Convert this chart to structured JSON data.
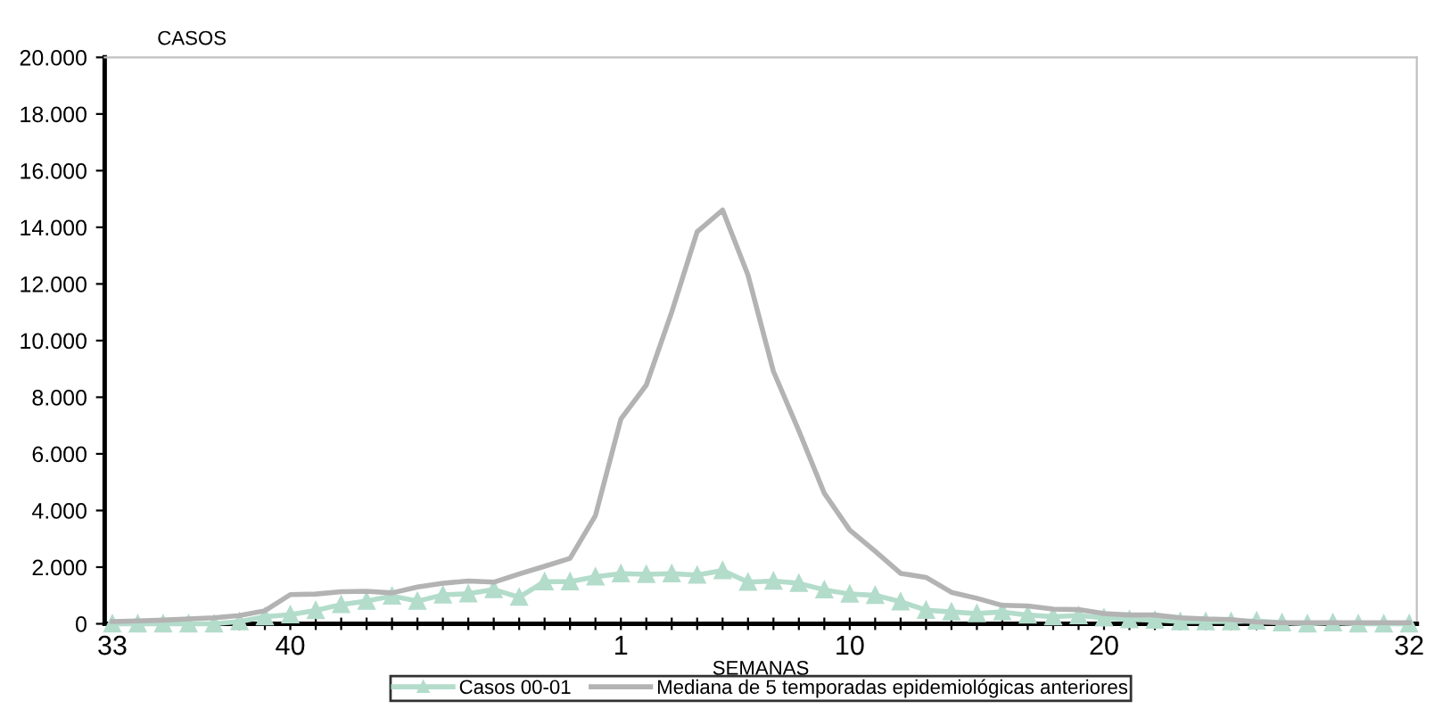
{
  "chart_data": {
    "type": "line",
    "xlabel": "SEMANAS",
    "ylabel": "CASOS",
    "categories": [
      "33",
      null,
      null,
      null,
      null,
      null,
      null,
      "40",
      null,
      null,
      null,
      null,
      null,
      null,
      null,
      null,
      null,
      null,
      null,
      null,
      "1",
      null,
      null,
      null,
      null,
      null,
      null,
      null,
      null,
      "10",
      null,
      null,
      null,
      null,
      null,
      null,
      null,
      null,
      null,
      "20",
      null,
      null,
      null,
      null,
      null,
      null,
      null,
      null,
      null,
      null,
      null,
      "32"
    ],
    "series": [
      {
        "name": "Casos 00-01",
        "color": "#b3dccb",
        "marker": "triangle",
        "values": [
          0,
          0,
          0,
          0,
          0,
          80,
          250,
          320,
          470,
          680,
          800,
          980,
          800,
          1020,
          1060,
          1210,
          940,
          1490,
          1490,
          1660,
          1770,
          1750,
          1770,
          1720,
          1880,
          1470,
          1510,
          1430,
          1200,
          1050,
          1010,
          780,
          480,
          420,
          360,
          420,
          310,
          250,
          290,
          210,
          150,
          130,
          80,
          80,
          80,
          100,
          40,
          0,
          40,
          0,
          0,
          0
        ]
      },
      {
        "name": "Mediana de 5 temporadas epidemiológicas anteriores",
        "color": "#b3b3b3",
        "marker": "none",
        "values": [
          80,
          100,
          130,
          170,
          210,
          290,
          460,
          1030,
          1050,
          1130,
          1150,
          1090,
          1300,
          1430,
          1510,
          1470,
          1760,
          2030,
          2310,
          3820,
          7230,
          8430,
          11010,
          13840,
          14610,
          12310,
          8910,
          6810,
          4610,
          3310,
          2560,
          1780,
          1640,
          1110,
          900,
          650,
          630,
          520,
          500,
          360,
          310,
          310,
          210,
          170,
          150,
          60,
          40,
          40,
          40,
          40,
          40,
          40
        ]
      }
    ],
    "ylim": [
      0,
      20000
    ],
    "yticks": [
      0,
      {
        "value": 2000,
        "label": "2.000"
      },
      {
        "value": 4000,
        "label": "4.000"
      },
      {
        "value": 6000,
        "label": "6.000"
      },
      {
        "value": 8000,
        "label": "8.000"
      },
      {
        "value": 10000,
        "label": "10.000"
      },
      {
        "value": 12000,
        "label": "12.000"
      },
      {
        "value": 14000,
        "label": "14.000"
      },
      {
        "value": 16000,
        "label": "16.000"
      },
      {
        "value": 18000,
        "label": "18.000"
      },
      {
        "value": 20000,
        "label": "20.000"
      }
    ],
    "grid": false,
    "legend": "bottom",
    "line_style": "solid"
  }
}
